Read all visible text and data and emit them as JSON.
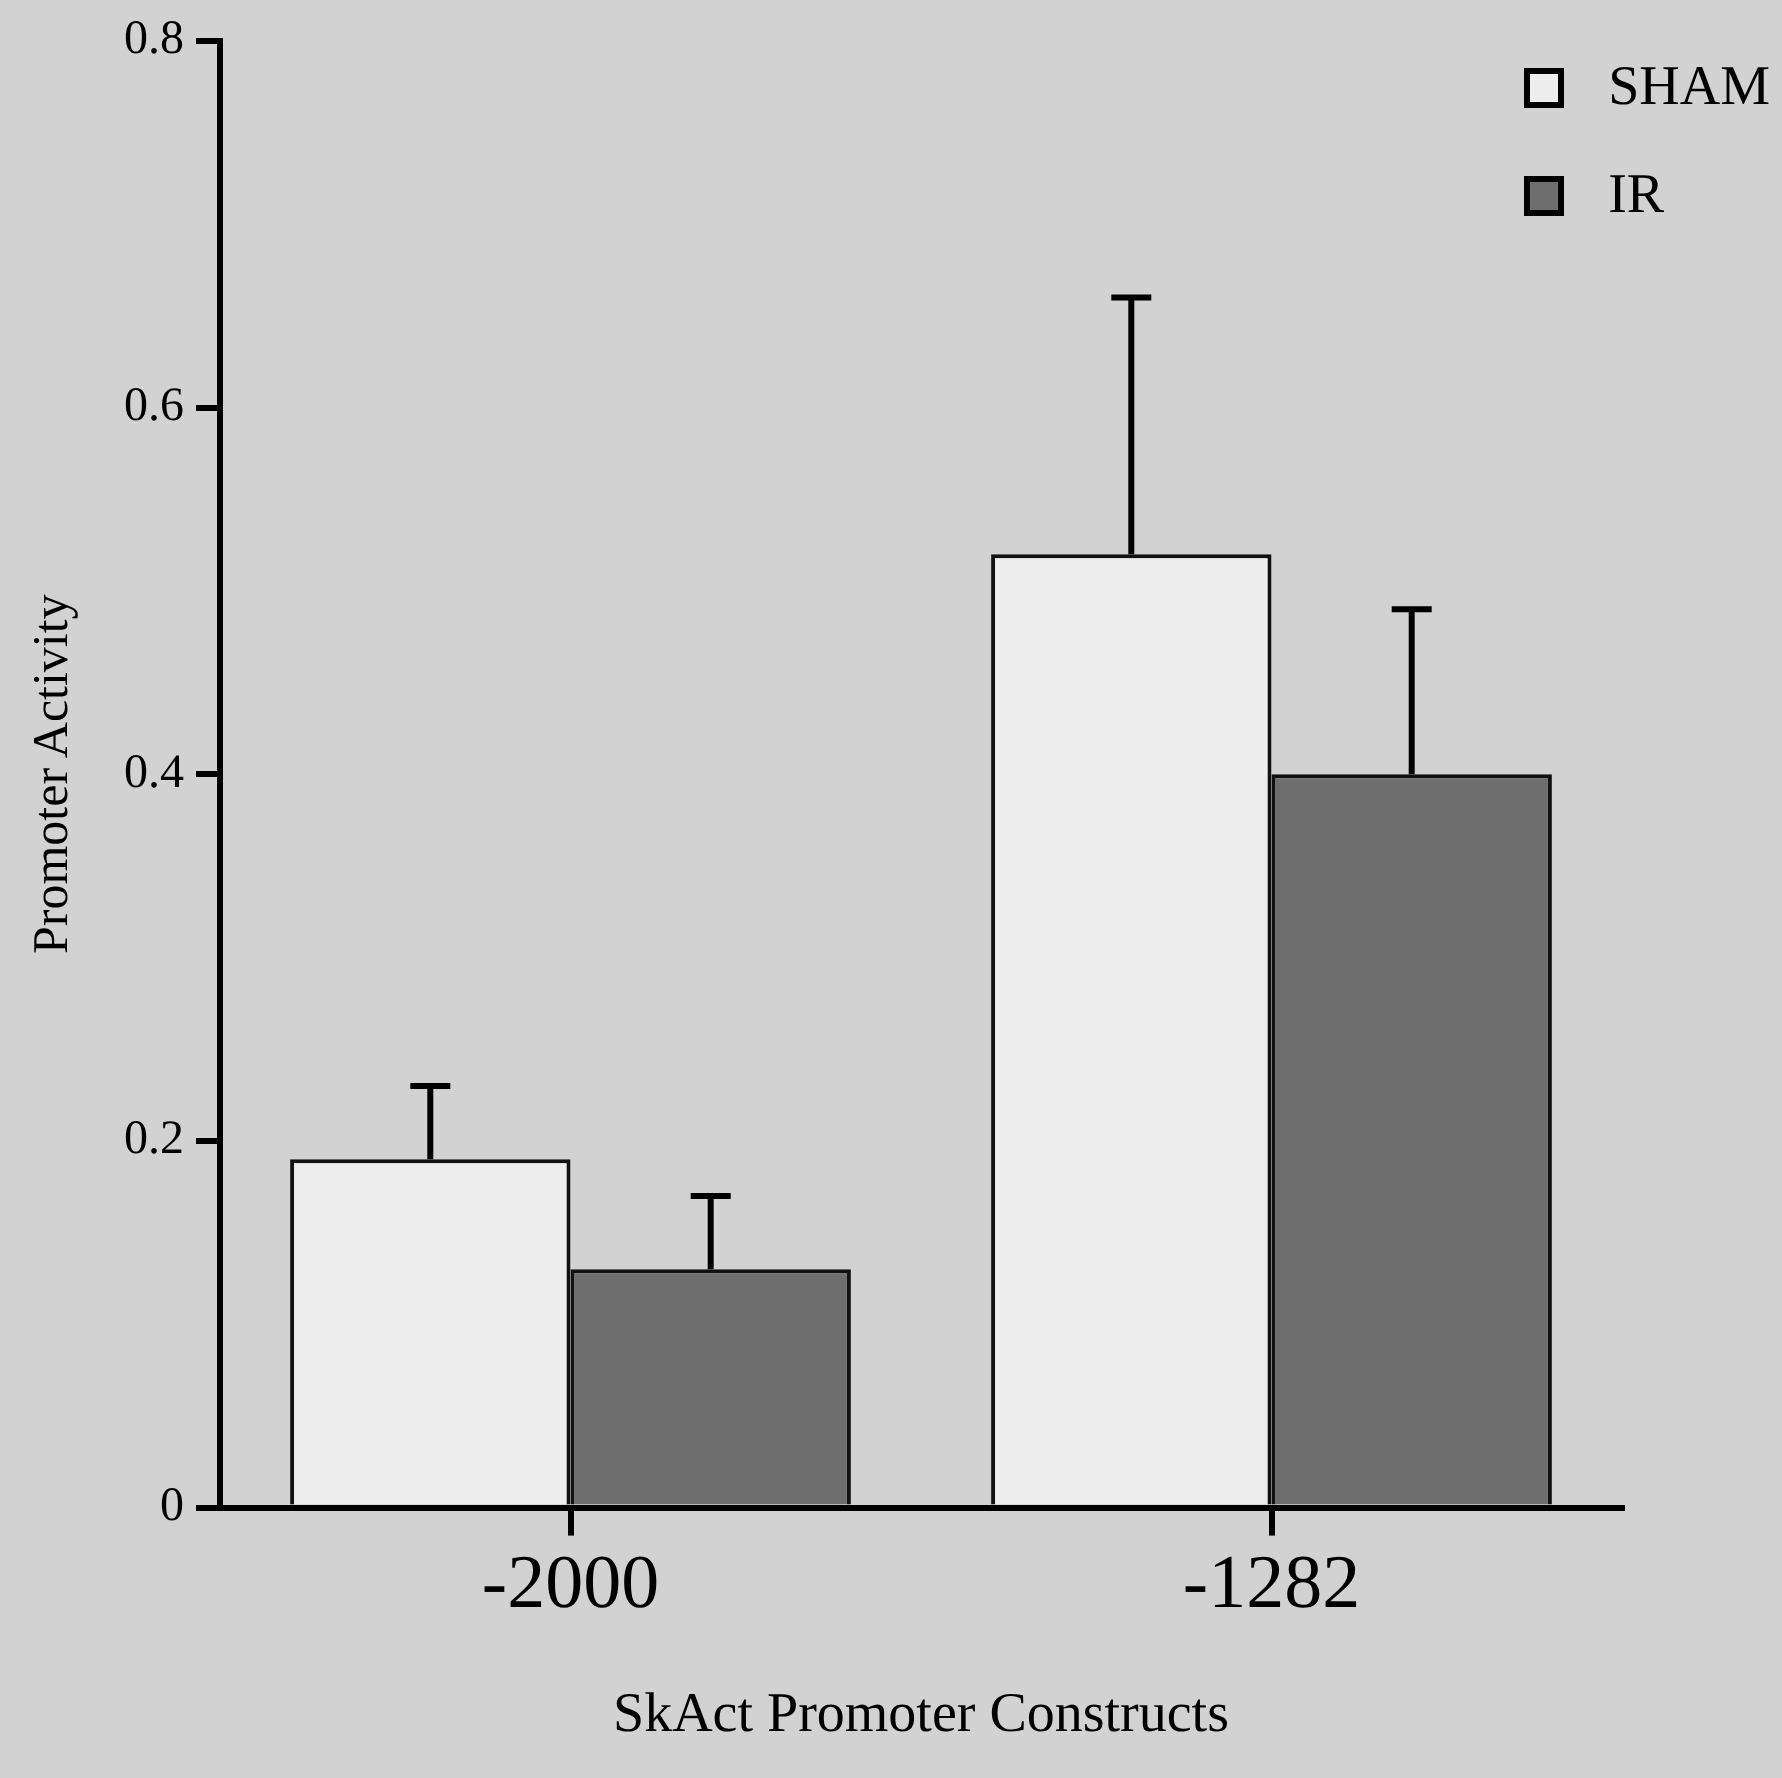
{
  "chart_data": {
    "type": "bar",
    "xlabel": "SkAct Promoter Constructs",
    "ylabel": "Promoter Activity",
    "categories": [
      "-2000",
      "-1282"
    ],
    "series": [
      {
        "name": "SHAM",
        "color": "#ededed",
        "values": [
          0.19,
          0.52
        ],
        "errors": [
          [
            0.19,
            0.23
          ],
          [
            0.52,
            0.66
          ]
        ]
      },
      {
        "name": "IR",
        "color": "#6e6e6e",
        "values": [
          0.13,
          0.4
        ],
        "errors": [
          [
            0.13,
            0.17
          ],
          [
            0.4,
            0.49
          ]
        ]
      }
    ],
    "ylim": [
      0,
      0.8
    ],
    "yticks": [
      0,
      0.2,
      0.4,
      0.6,
      0.8
    ],
    "grid": false,
    "legend": "top right"
  }
}
